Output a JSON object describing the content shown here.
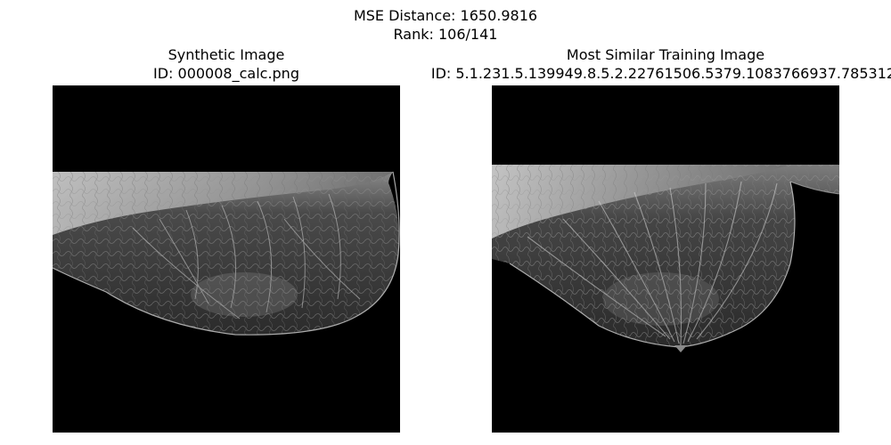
{
  "figure": {
    "suptitle_line1": "MSE Distance: 1650.9816",
    "suptitle_line2": "Rank: 106/141"
  },
  "left_panel": {
    "title": "Synthetic Image",
    "id_label": "ID: 000008_calc.png",
    "image_description": "grayscale mammogram, breast tissue on black background"
  },
  "right_panel": {
    "title": "Most Similar Training Image",
    "id_label": "ID: 5.1.231.5.139949.8.5.2.22761506.5379.1083766937.785312.",
    "image_description": "grayscale mammogram, breast tissue on black background"
  }
}
